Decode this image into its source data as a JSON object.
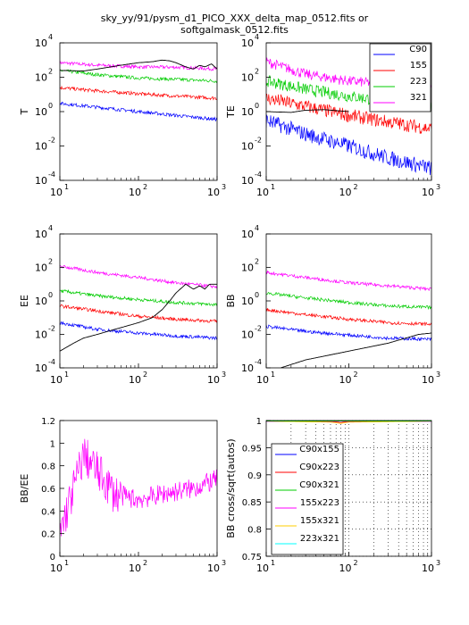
{
  "figure": {
    "title_line1": "sky_yy/91/pysm_d1_PICO_XXX_delta_map_0512.fits or",
    "title_line2": "softgalmask_0512.fits"
  },
  "chart_data": [
    {
      "id": "TT",
      "type": "line",
      "ylabel": "T",
      "xscale": "log",
      "yscale": "log",
      "xlim": [
        10,
        1000
      ],
      "ylim": [
        0.0001,
        10000
      ],
      "xticks": [
        {
          "v": 10,
          "base": "10",
          "exp": "1"
        },
        {
          "v": 100,
          "base": "10",
          "exp": "2"
        },
        {
          "v": 1000,
          "base": "10",
          "exp": "3"
        }
      ],
      "yticks": [
        {
          "v": 0.0001,
          "base": "10",
          "exp": "-4"
        },
        {
          "v": 0.01,
          "base": "10",
          "exp": "-2"
        },
        {
          "v": 1,
          "base": "10",
          "exp": "0"
        },
        {
          "v": 100,
          "base": "10",
          "exp": "2"
        },
        {
          "v": 10000,
          "base": "10",
          "exp": "4"
        }
      ],
      "series": [
        {
          "color": "#ff00ff",
          "noise": 0.1,
          "x": [
            10,
            30,
            100,
            300,
            1000
          ],
          "y": [
            700,
            500,
            400,
            380,
            300
          ]
        },
        {
          "color": "#00cc00",
          "noise": 0.1,
          "x": [
            10,
            30,
            100,
            300,
            1000
          ],
          "y": [
            250,
            140,
            90,
            75,
            60
          ]
        },
        {
          "color": "#ff0000",
          "noise": 0.1,
          "x": [
            10,
            30,
            100,
            300,
            1000
          ],
          "y": [
            25,
            16,
            11,
            8,
            6
          ]
        },
        {
          "color": "#0000ff",
          "noise": 0.1,
          "x": [
            10,
            30,
            100,
            300,
            1000
          ],
          "y": [
            3,
            1.8,
            1,
            0.6,
            0.35
          ]
        },
        {
          "color": "#000000",
          "noise": 0,
          "x": [
            10,
            20,
            30,
            60,
            100,
            150,
            200,
            250,
            300,
            400,
            500,
            600,
            700,
            850,
            1000
          ],
          "y": [
            250,
            230,
            300,
            500,
            700,
            800,
            1000,
            900,
            700,
            400,
            300,
            500,
            400,
            600,
            300
          ]
        }
      ]
    },
    {
      "id": "TE",
      "type": "line",
      "ylabel": "TE",
      "xscale": "log",
      "yscale": "log",
      "xlim": [
        10,
        1000
      ],
      "ylim": [
        0.0001,
        10000
      ],
      "xticks": [
        {
          "v": 10,
          "base": "10",
          "exp": "1"
        },
        {
          "v": 100,
          "base": "10",
          "exp": "2"
        },
        {
          "v": 1000,
          "base": "10",
          "exp": "3"
        }
      ],
      "yticks": [
        {
          "v": 0.0001,
          "base": "10",
          "exp": "-4"
        },
        {
          "v": 0.01,
          "base": "10",
          "exp": "-2"
        },
        {
          "v": 1,
          "base": "10",
          "exp": "0"
        },
        {
          "v": 100,
          "base": "10",
          "exp": "2"
        },
        {
          "v": 10000,
          "base": "10",
          "exp": "4"
        }
      ],
      "legend": {
        "position": "top-right",
        "entries": [
          {
            "name": "C90",
            "color": "#0000ff"
          },
          {
            "name": "155",
            "color": "#ff0000"
          },
          {
            "name": "223",
            "color": "#00cc00"
          },
          {
            "name": "321",
            "color": "#ff00ff"
          }
        ]
      },
      "series": [
        {
          "color": "#ff00ff",
          "noise": 0.3,
          "x": [
            10,
            30,
            100,
            300,
            1000
          ],
          "y": [
            800,
            150,
            60,
            40,
            20
          ]
        },
        {
          "color": "#00cc00",
          "noise": 0.35,
          "x": [
            10,
            30,
            100,
            300,
            1000
          ],
          "y": [
            60,
            20,
            8,
            4,
            2
          ]
        },
        {
          "color": "#ff0000",
          "noise": 0.4,
          "x": [
            10,
            30,
            100,
            300,
            1000
          ],
          "y": [
            6,
            2,
            0.6,
            0.25,
            0.1
          ]
        },
        {
          "color": "#0000ff",
          "noise": 0.45,
          "x": [
            10,
            30,
            100,
            300,
            1000
          ],
          "y": [
            0.3,
            0.05,
            0.01,
            0.002,
            0.0005
          ]
        },
        {
          "color": "#000000",
          "noise": 0,
          "x": [
            10,
            20,
            30,
            50,
            100
          ],
          "y": [
            1,
            0.9,
            1.2,
            1.3,
            1
          ]
        }
      ]
    },
    {
      "id": "EE",
      "type": "line",
      "ylabel": "EE",
      "xscale": "log",
      "yscale": "log",
      "xlim": [
        10,
        1000
      ],
      "ylim": [
        0.0001,
        10000
      ],
      "xticks": [
        {
          "v": 10,
          "base": "10",
          "exp": "1"
        },
        {
          "v": 100,
          "base": "10",
          "exp": "2"
        },
        {
          "v": 1000,
          "base": "10",
          "exp": "3"
        }
      ],
      "yticks": [
        {
          "v": 0.0001,
          "base": "10",
          "exp": "-4"
        },
        {
          "v": 0.01,
          "base": "10",
          "exp": "-2"
        },
        {
          "v": 1,
          "base": "10",
          "exp": "0"
        },
        {
          "v": 100,
          "base": "10",
          "exp": "2"
        },
        {
          "v": 10000,
          "base": "10",
          "exp": "4"
        }
      ],
      "series": [
        {
          "color": "#ff00ff",
          "noise": 0.1,
          "x": [
            10,
            30,
            100,
            300,
            1000
          ],
          "y": [
            120,
            50,
            25,
            12,
            7
          ]
        },
        {
          "color": "#00cc00",
          "noise": 0.1,
          "x": [
            10,
            30,
            100,
            300,
            1000
          ],
          "y": [
            4,
            2,
            1.2,
            0.8,
            0.6
          ]
        },
        {
          "color": "#ff0000",
          "noise": 0.1,
          "x": [
            10,
            30,
            100,
            300,
            1000
          ],
          "y": [
            0.5,
            0.25,
            0.12,
            0.08,
            0.06
          ]
        },
        {
          "color": "#0000ff",
          "noise": 0.1,
          "x": [
            10,
            30,
            100,
            300,
            1000
          ],
          "y": [
            0.05,
            0.02,
            0.012,
            0.008,
            0.006
          ]
        },
        {
          "color": "#000000",
          "noise": 0,
          "x": [
            10,
            15,
            20,
            30,
            50,
            100,
            150,
            200,
            250,
            300,
            400,
            500,
            600,
            700,
            800,
            1000
          ],
          "y": [
            0.001,
            0.003,
            0.006,
            0.01,
            0.02,
            0.05,
            0.1,
            0.3,
            1,
            3,
            10,
            5,
            8,
            5,
            10,
            10
          ]
        }
      ]
    },
    {
      "id": "BB",
      "type": "line",
      "ylabel": "BB",
      "xscale": "log",
      "yscale": "log",
      "xlim": [
        10,
        1000
      ],
      "ylim": [
        0.0001,
        10000
      ],
      "xticks": [
        {
          "v": 10,
          "base": "10",
          "exp": "1"
        },
        {
          "v": 100,
          "base": "10",
          "exp": "2"
        },
        {
          "v": 1000,
          "base": "10",
          "exp": "3"
        }
      ],
      "yticks": [
        {
          "v": 0.0001,
          "base": "10",
          "exp": "-4"
        },
        {
          "v": 0.01,
          "base": "10",
          "exp": "-2"
        },
        {
          "v": 1,
          "base": "10",
          "exp": "0"
        },
        {
          "v": 100,
          "base": "10",
          "exp": "2"
        },
        {
          "v": 10000,
          "base": "10",
          "exp": "4"
        }
      ],
      "series": [
        {
          "color": "#ff00ff",
          "noise": 0.1,
          "x": [
            10,
            30,
            100,
            300,
            1000
          ],
          "y": [
            50,
            25,
            12,
            8,
            5
          ]
        },
        {
          "color": "#00cc00",
          "noise": 0.1,
          "x": [
            10,
            30,
            100,
            300,
            1000
          ],
          "y": [
            3,
            1.5,
            0.8,
            0.5,
            0.4
          ]
        },
        {
          "color": "#ff0000",
          "noise": 0.1,
          "x": [
            10,
            30,
            100,
            300,
            1000
          ],
          "y": [
            0.3,
            0.15,
            0.08,
            0.05,
            0.04
          ]
        },
        {
          "color": "#0000ff",
          "noise": 0.1,
          "x": [
            10,
            30,
            100,
            300,
            1000
          ],
          "y": [
            0.03,
            0.015,
            0.009,
            0.006,
            0.005
          ]
        },
        {
          "color": "#000000",
          "noise": 0,
          "x": [
            15,
            30,
            100,
            300,
            700,
            1000
          ],
          "y": [
            0.0001,
            0.0003,
            0.001,
            0.003,
            0.01,
            0.012
          ]
        }
      ]
    },
    {
      "id": "BB_EE",
      "type": "line",
      "ylabel": "BB/EE",
      "xscale": "log",
      "yscale": "linear",
      "xlim": [
        10,
        1000
      ],
      "ylim": [
        0,
        1.2
      ],
      "xticks": [
        {
          "v": 10,
          "base": "10",
          "exp": "1"
        },
        {
          "v": 100,
          "base": "10",
          "exp": "2"
        },
        {
          "v": 1000,
          "base": "10",
          "exp": "3"
        }
      ],
      "yticks": [
        {
          "v": 0,
          "label": "0"
        },
        {
          "v": 0.2,
          "label": "0.2"
        },
        {
          "v": 0.4,
          "label": "0.4"
        },
        {
          "v": 0.6,
          "label": "0.6"
        },
        {
          "v": 0.8,
          "label": "0.8"
        },
        {
          "v": 1,
          "label": "1"
        },
        {
          "v": 1.2,
          "label": "1.2"
        }
      ],
      "series": [
        {
          "color": "#ff00ff",
          "noise": 0.18,
          "x": [
            10,
            15,
            20,
            30,
            50,
            100,
            200,
            500,
            1000
          ],
          "y": [
            0.2,
            0.6,
            0.9,
            0.75,
            0.55,
            0.5,
            0.55,
            0.6,
            0.68
          ]
        }
      ]
    },
    {
      "id": "BB_cross",
      "type": "line",
      "ylabel": "BB cross/sqrt(autos)",
      "xscale": "log",
      "yscale": "linear",
      "xlim": [
        10,
        1000
      ],
      "ylim": [
        0.75,
        1.0
      ],
      "grid": "dotted",
      "xticks": [
        {
          "v": 10,
          "base": "10",
          "exp": "1"
        },
        {
          "v": 100,
          "base": "10",
          "exp": "2"
        },
        {
          "v": 1000,
          "base": "10",
          "exp": "3"
        }
      ],
      "yticks": [
        {
          "v": 0.75,
          "label": "0.75"
        },
        {
          "v": 0.8,
          "label": "0.8"
        },
        {
          "v": 0.85,
          "label": "0.85"
        },
        {
          "v": 0.9,
          "label": "0.9"
        },
        {
          "v": 0.95,
          "label": "0.95"
        },
        {
          "v": 1,
          "label": "1"
        }
      ],
      "legend": {
        "position": "bottom-left",
        "entries": [
          {
            "name": "C90x155",
            "color": "#0000ff"
          },
          {
            "name": "C90x223",
            "color": "#ff0000"
          },
          {
            "name": "C90x321",
            "color": "#00cc00"
          },
          {
            "name": "155x223",
            "color": "#ff00ff"
          },
          {
            "name": "155x321",
            "color": "#ffcc00"
          },
          {
            "name": "223x321",
            "color": "#00ffff"
          }
        ]
      },
      "series": [
        {
          "color": "#0000ff",
          "noise": 0,
          "x": [
            10,
            1000
          ],
          "y": [
            0.9995,
            0.9995
          ]
        },
        {
          "color": "#ff0000",
          "noise": 0,
          "x": [
            10,
            60,
            80,
            100,
            1000
          ],
          "y": [
            0.999,
            0.998,
            0.996,
            0.998,
            0.999
          ]
        },
        {
          "color": "#ff00ff",
          "noise": 0,
          "x": [
            10,
            1000
          ],
          "y": [
            0.9985,
            0.9985
          ]
        },
        {
          "color": "#ffcc00",
          "noise": 0,
          "x": [
            10,
            60,
            80,
            100,
            1000
          ],
          "y": [
            0.999,
            0.997,
            0.995,
            0.997,
            0.999
          ]
        },
        {
          "color": "#00ffff",
          "noise": 0,
          "x": [
            10,
            1000
          ],
          "y": [
            0.9995,
            0.9995
          ]
        },
        {
          "color": "#00cc00",
          "noise": 0,
          "x": [
            10,
            1000
          ],
          "y": [
            0.9992,
            0.9992
          ]
        }
      ]
    }
  ]
}
